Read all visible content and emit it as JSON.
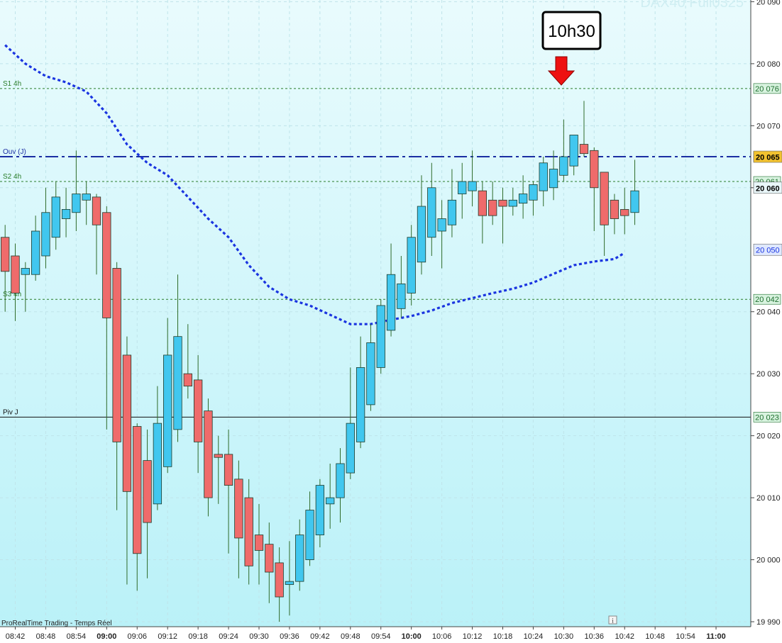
{
  "watermark": "DAX40 Full0325",
  "footer_label": "ProRealTime Trading - Temps Réel",
  "info_icon": "i",
  "callout": {
    "text": "10h30",
    "arrow_time": "10:30"
  },
  "colors": {
    "background_top": "#e9fbfd",
    "background_bottom": "#b9f1f8",
    "bull": "#41c7ef",
    "bear": "#ef6b6b",
    "wick": "#2f6b2a",
    "ma": "#1a34e0",
    "ouv": "#1b2ea3",
    "support": "#2a7d2a",
    "pivot": "#111111",
    "current_price_tag": "#f2c230"
  },
  "chart_data": {
    "type": "candlestick",
    "instrument": "DAX40 Full0325",
    "timeframe_minutes": 2,
    "y_range": [
      19990,
      20090
    ],
    "x_range": [
      "08:40",
      "11:04"
    ],
    "y_ticks": [
      {
        "value": 20090,
        "label": "20 090"
      },
      {
        "value": 20080,
        "label": "20 080"
      },
      {
        "value": 20070,
        "label": "20 070"
      },
      {
        "value": 20060,
        "label": "20 060"
      },
      {
        "value": 20040,
        "label": "20 040"
      },
      {
        "value": 20030,
        "label": "20 030"
      },
      {
        "value": 20020,
        "label": "20 020"
      },
      {
        "value": 20010,
        "label": "20 010"
      },
      {
        "value": 20000,
        "label": "20 000"
      },
      {
        "value": 19990,
        "label": "19 990"
      }
    ],
    "x_ticks": [
      {
        "time": "08:42",
        "bold": false
      },
      {
        "time": "08:48",
        "bold": false
      },
      {
        "time": "08:54",
        "bold": false
      },
      {
        "time": "09:00",
        "bold": true
      },
      {
        "time": "09:06",
        "bold": false
      },
      {
        "time": "09:12",
        "bold": false
      },
      {
        "time": "09:18",
        "bold": false
      },
      {
        "time": "09:24",
        "bold": false
      },
      {
        "time": "09:30",
        "bold": false
      },
      {
        "time": "09:36",
        "bold": false
      },
      {
        "time": "09:42",
        "bold": false
      },
      {
        "time": "09:48",
        "bold": false
      },
      {
        "time": "09:54",
        "bold": false
      },
      {
        "time": "10:00",
        "bold": true
      },
      {
        "time": "10:06",
        "bold": false
      },
      {
        "time": "10:12",
        "bold": false
      },
      {
        "time": "10:18",
        "bold": false
      },
      {
        "time": "10:24",
        "bold": false
      },
      {
        "time": "10:30",
        "bold": false
      },
      {
        "time": "10:36",
        "bold": false
      },
      {
        "time": "10:42",
        "bold": false
      },
      {
        "time": "10:48",
        "bold": false
      },
      {
        "time": "10:54",
        "bold": false
      },
      {
        "time": "11:00",
        "bold": true
      }
    ],
    "levels": [
      {
        "name": "S1 4h",
        "value": 20076,
        "tag": "20 076",
        "style": "dashed",
        "color": "#2a7d2a",
        "tag_bg": "#d8f3df",
        "tag_fg": "#1e6e2e"
      },
      {
        "name": "Ouv (J)",
        "value": 20065,
        "tag": "20 065",
        "style": "dashdot",
        "color": "#1b2ea3",
        "tag_bg": "#dfe8ff",
        "tag_fg": "#1b2ea3"
      },
      {
        "name": "S2 4h",
        "value": 20061,
        "tag": "20 061",
        "style": "dashed",
        "color": "#2a7d2a",
        "tag_bg": "#d8f3df",
        "tag_fg": "#1e6e2e"
      },
      {
        "name": "S3 4h",
        "value": 20042,
        "tag": "20 042",
        "style": "dashed",
        "color": "#2a7d2a",
        "tag_bg": "#d8f3df",
        "tag_fg": "#1e6e2e"
      },
      {
        "name": "Piv J",
        "value": 20023,
        "tag": "20 023",
        "style": "solid",
        "color": "#111111",
        "tag_bg": "#d8f3df",
        "tag_fg": "#1e6e2e"
      }
    ],
    "price_tags": [
      {
        "value": 20065,
        "label": "20 065",
        "bg": "#f2c230",
        "fg": "#000000",
        "bold": true
      },
      {
        "value": 20060,
        "label": "20 060",
        "bg": "#e9f6f9",
        "fg": "#000000",
        "bold": true
      },
      {
        "value": 20050,
        "label": "20 050",
        "bg": "#dfe8ff",
        "fg": "#1a34e0",
        "bold": false
      }
    ],
    "moving_average": [
      {
        "t": "08:40",
        "v": 20083
      },
      {
        "t": "08:44",
        "v": 20080
      },
      {
        "t": "08:48",
        "v": 20078
      },
      {
        "t": "08:52",
        "v": 20077
      },
      {
        "t": "08:56",
        "v": 20075.5
      },
      {
        "t": "09:00",
        "v": 20072
      },
      {
        "t": "09:04",
        "v": 20067
      },
      {
        "t": "09:08",
        "v": 20064
      },
      {
        "t": "09:12",
        "v": 20062
      },
      {
        "t": "09:16",
        "v": 20058.5
      },
      {
        "t": "09:20",
        "v": 20055
      },
      {
        "t": "09:24",
        "v": 20052
      },
      {
        "t": "09:28",
        "v": 20047.5
      },
      {
        "t": "09:32",
        "v": 20044
      },
      {
        "t": "09:36",
        "v": 20042
      },
      {
        "t": "09:40",
        "v": 20041
      },
      {
        "t": "09:44",
        "v": 20039.5
      },
      {
        "t": "09:48",
        "v": 20038
      },
      {
        "t": "09:52",
        "v": 20038
      },
      {
        "t": "09:56",
        "v": 20038.7
      },
      {
        "t": "10:00",
        "v": 20039.3
      },
      {
        "t": "10:04",
        "v": 20040.2
      },
      {
        "t": "10:08",
        "v": 20041.4
      },
      {
        "t": "10:12",
        "v": 20042.2
      },
      {
        "t": "10:16",
        "v": 20043
      },
      {
        "t": "10:20",
        "v": 20043.7
      },
      {
        "t": "10:24",
        "v": 20044.7
      },
      {
        "t": "10:28",
        "v": 20046.1
      },
      {
        "t": "10:32",
        "v": 20047.5
      },
      {
        "t": "10:36",
        "v": 20048.1
      },
      {
        "t": "10:40",
        "v": 20048.5
      },
      {
        "t": "10:42",
        "v": 20049.5
      }
    ],
    "candles": [
      {
        "t": "08:40",
        "o": 20052,
        "h": 20054,
        "l": 20040,
        "c": 20046.5
      },
      {
        "t": "08:42",
        "o": 20049,
        "h": 20051,
        "l": 20038.5,
        "c": 20043
      },
      {
        "t": "08:44",
        "o": 20046,
        "h": 20048,
        "l": 20040,
        "c": 20047
      },
      {
        "t": "08:46",
        "o": 20046,
        "h": 20055.5,
        "l": 20045,
        "c": 20053
      },
      {
        "t": "08:48",
        "o": 20049,
        "h": 20060,
        "l": 20047,
        "c": 20056
      },
      {
        "t": "08:50",
        "o": 20052,
        "h": 20061,
        "l": 20050,
        "c": 20058.5
      },
      {
        "t": "08:52",
        "o": 20055,
        "h": 20060,
        "l": 20052,
        "c": 20056.5
      },
      {
        "t": "08:54",
        "o": 20056,
        "h": 20066,
        "l": 20053,
        "c": 20059
      },
      {
        "t": "08:56",
        "o": 20058,
        "h": 20061,
        "l": 20054,
        "c": 20059
      },
      {
        "t": "08:58",
        "o": 20058.5,
        "h": 20059,
        "l": 20046,
        "c": 20054
      },
      {
        "t": "09:00",
        "o": 20056,
        "h": 20057,
        "l": 20021,
        "c": 20039
      },
      {
        "t": "09:02",
        "o": 20047,
        "h": 20048,
        "l": 20008,
        "c": 20019
      },
      {
        "t": "09:04",
        "o": 20033,
        "h": 20036,
        "l": 19996,
        "c": 20011
      },
      {
        "t": "09:06",
        "o": 20021.5,
        "h": 20022,
        "l": 19995,
        "c": 20001
      },
      {
        "t": "09:08",
        "o": 20016,
        "h": 20021,
        "l": 19997,
        "c": 20006
      },
      {
        "t": "09:10",
        "o": 20009,
        "h": 20028,
        "l": 20008,
        "c": 20022
      },
      {
        "t": "09:12",
        "o": 20015,
        "h": 20039,
        "l": 20014,
        "c": 20033
      },
      {
        "t": "09:14",
        "o": 20021,
        "h": 20046,
        "l": 20019,
        "c": 20036
      },
      {
        "t": "09:16",
        "o": 20030,
        "h": 20038,
        "l": 20026,
        "c": 20028
      },
      {
        "t": "09:18",
        "o": 20029,
        "h": 20033,
        "l": 20014,
        "c": 20019
      },
      {
        "t": "09:20",
        "o": 20024,
        "h": 20026,
        "l": 20007,
        "c": 20010
      },
      {
        "t": "09:22",
        "o": 20017,
        "h": 20020,
        "l": 20009,
        "c": 20016.5
      },
      {
        "t": "09:24",
        "o": 20017,
        "h": 20021,
        "l": 20001,
        "c": 20012
      },
      {
        "t": "09:26",
        "o": 20013,
        "h": 20016,
        "l": 19997,
        "c": 20003.5
      },
      {
        "t": "09:28",
        "o": 20010,
        "h": 20013,
        "l": 19996,
        "c": 19999
      },
      {
        "t": "09:30",
        "o": 20004,
        "h": 20009,
        "l": 19996,
        "c": 20001.5
      },
      {
        "t": "09:32",
        "o": 20002.5,
        "h": 20006,
        "l": 19993,
        "c": 19998
      },
      {
        "t": "09:34",
        "o": 19999.5,
        "h": 20002,
        "l": 19990,
        "c": 19994
      },
      {
        "t": "09:36",
        "o": 19996,
        "h": 20003,
        "l": 19991,
        "c": 19996.5
      },
      {
        "t": "09:38",
        "o": 19996.5,
        "h": 20006.5,
        "l": 19995,
        "c": 20004
      },
      {
        "t": "09:40",
        "o": 20000,
        "h": 20011,
        "l": 19999,
        "c": 20008
      },
      {
        "t": "09:42",
        "o": 20004,
        "h": 20013,
        "l": 20002,
        "c": 20012
      },
      {
        "t": "09:44",
        "o": 20009,
        "h": 20015.5,
        "l": 20005,
        "c": 20010
      },
      {
        "t": "09:46",
        "o": 20010,
        "h": 20018,
        "l": 20006,
        "c": 20015.5
      },
      {
        "t": "09:48",
        "o": 20014,
        "h": 20031,
        "l": 20013,
        "c": 20022
      },
      {
        "t": "09:50",
        "o": 20019,
        "h": 20036,
        "l": 20018,
        "c": 20031
      },
      {
        "t": "09:52",
        "o": 20025,
        "h": 20038,
        "l": 20024,
        "c": 20035
      },
      {
        "t": "09:54",
        "o": 20031,
        "h": 20042,
        "l": 20030,
        "c": 20041
      },
      {
        "t": "09:56",
        "o": 20037,
        "h": 20051,
        "l": 20036,
        "c": 20046
      },
      {
        "t": "09:58",
        "o": 20040.5,
        "h": 20049,
        "l": 20039,
        "c": 20044.5
      },
      {
        "t": "10:00",
        "o": 20043,
        "h": 20054,
        "l": 20041,
        "c": 20052
      },
      {
        "t": "10:02",
        "o": 20048,
        "h": 20062,
        "l": 20046,
        "c": 20057
      },
      {
        "t": "10:04",
        "o": 20052,
        "h": 20064,
        "l": 20049,
        "c": 20060
      },
      {
        "t": "10:06",
        "o": 20053,
        "h": 20058,
        "l": 20047,
        "c": 20055
      },
      {
        "t": "10:08",
        "o": 20054,
        "h": 20063,
        "l": 20052,
        "c": 20058
      },
      {
        "t": "10:10",
        "o": 20059,
        "h": 20064,
        "l": 20055,
        "c": 20061
      },
      {
        "t": "10:12",
        "o": 20059.5,
        "h": 20066,
        "l": 20057,
        "c": 20061
      },
      {
        "t": "10:14",
        "o": 20059.5,
        "h": 20061,
        "l": 20051,
        "c": 20055.5
      },
      {
        "t": "10:16",
        "o": 20058,
        "h": 20061,
        "l": 20054,
        "c": 20055.5
      },
      {
        "t": "10:18",
        "o": 20058,
        "h": 20060,
        "l": 20051,
        "c": 20057
      },
      {
        "t": "10:20",
        "o": 20057,
        "h": 20060,
        "l": 20055.5,
        "c": 20058
      },
      {
        "t": "10:22",
        "o": 20057.5,
        "h": 20062,
        "l": 20055,
        "c": 20059
      },
      {
        "t": "10:24",
        "o": 20058,
        "h": 20061,
        "l": 20055.5,
        "c": 20060.5
      },
      {
        "t": "10:26",
        "o": 20059.5,
        "h": 20065,
        "l": 20057,
        "c": 20064
      },
      {
        "t": "10:28",
        "o": 20060,
        "h": 20066,
        "l": 20058,
        "c": 20063
      },
      {
        "t": "10:30",
        "o": 20062,
        "h": 20071,
        "l": 20061,
        "c": 20065
      },
      {
        "t": "10:32",
        "o": 20063.5,
        "h": 20068,
        "l": 20062,
        "c": 20068.5
      },
      {
        "t": "10:34",
        "o": 20067,
        "h": 20074,
        "l": 20065,
        "c": 20065.5
      },
      {
        "t": "10:36",
        "o": 20066,
        "h": 20066.5,
        "l": 20053,
        "c": 20060
      },
      {
        "t": "10:38",
        "o": 20062.5,
        "h": 20062.5,
        "l": 20049,
        "c": 20054
      },
      {
        "t": "10:40",
        "o": 20058,
        "h": 20059,
        "l": 20052.5,
        "c": 20055
      },
      {
        "t": "10:42",
        "o": 20056.5,
        "h": 20060,
        "l": 20052.5,
        "c": 20055.5
      },
      {
        "t": "10:44",
        "o": 20056,
        "h": 20064.5,
        "l": 20054,
        "c": 20059.5
      }
    ]
  }
}
